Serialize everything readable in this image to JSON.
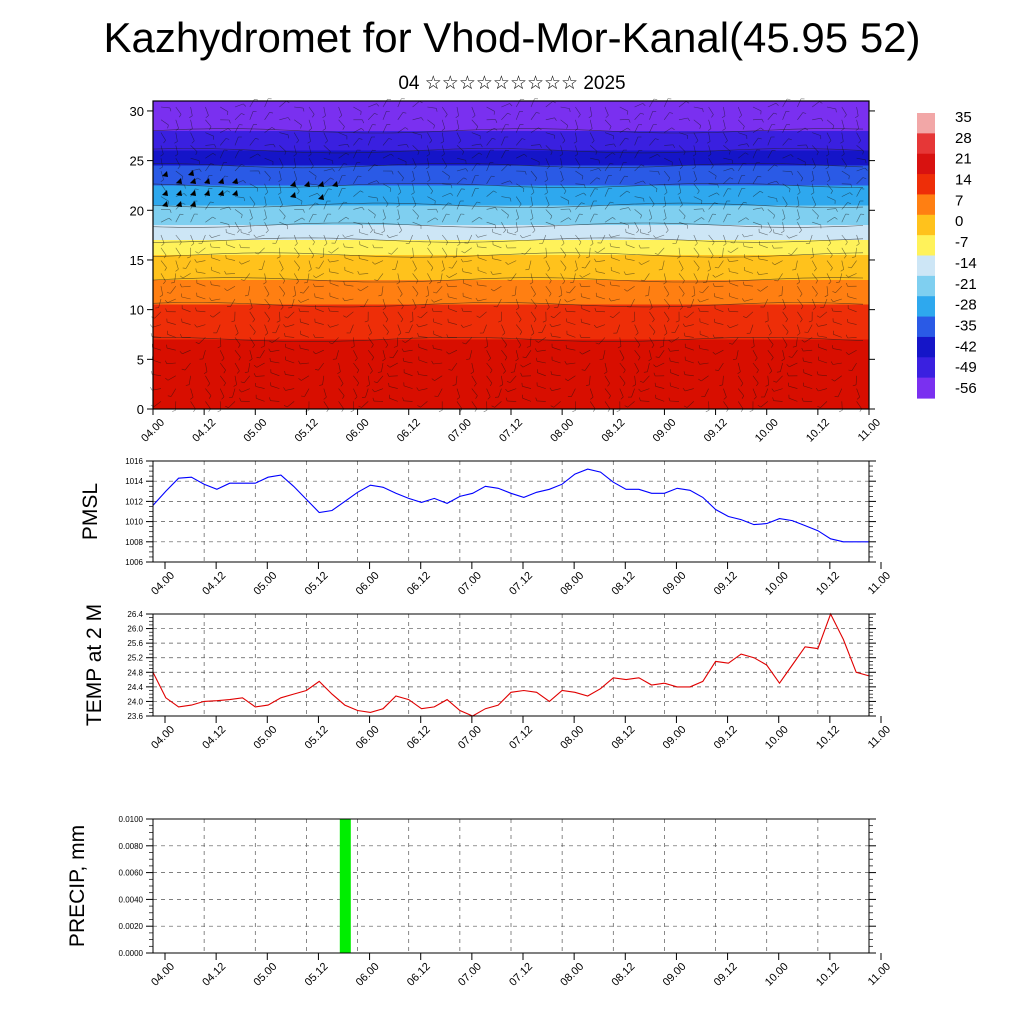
{
  "header": {
    "title": "Kazhydromet for Vhod-Mor-Kanal(45.95 52)",
    "subtitle": "04 ☆☆☆☆☆☆☆☆☆ 2025"
  },
  "colors": {
    "pmsl_line": "#0000ff",
    "temp_line": "#e00000",
    "precip_bar": "#00ee00",
    "grid": "#555555"
  },
  "chart_data": [
    {
      "id": "cross-section",
      "type": "heatmap",
      "title": "",
      "xlabel": "",
      "ylabel": "",
      "x_ticks": [
        "04.00",
        "04.12",
        "05.00",
        "05.12",
        "06.00",
        "06.12",
        "07.00",
        "07.12",
        "08.00",
        "08.12",
        "09.00",
        "09.12",
        "10.00",
        "10.12",
        "11.00"
      ],
      "y_ticks": [
        0,
        5,
        10,
        15,
        20,
        25,
        30
      ],
      "ylim": [
        0,
        31
      ],
      "bands": [
        {
          "top": 31,
          "bottom": 28,
          "color": "#7a30f0"
        },
        {
          "top": 28,
          "bottom": 26,
          "color": "#3a20e0"
        },
        {
          "top": 26,
          "bottom": 24.5,
          "color": "#1515c8"
        },
        {
          "top": 24.5,
          "bottom": 22.5,
          "color": "#2a5ae6"
        },
        {
          "top": 22.5,
          "bottom": 20.5,
          "color": "#2ea8ee"
        },
        {
          "top": 20.5,
          "bottom": 18.5,
          "color": "#7fcff0"
        },
        {
          "top": 18.5,
          "bottom": 17,
          "color": "#cde6f6"
        },
        {
          "top": 17,
          "bottom": 15.5,
          "color": "#fff25a"
        },
        {
          "top": 15.5,
          "bottom": 13,
          "color": "#ffc21c"
        },
        {
          "top": 13,
          "bottom": 10.5,
          "color": "#ff7f12"
        },
        {
          "top": 10.5,
          "bottom": 7,
          "color": "#ee2e08"
        },
        {
          "top": 7,
          "bottom": 0,
          "color": "#d80e00"
        }
      ],
      "colorbar": {
        "labels": [
          "35",
          "28",
          "21",
          "14",
          "7",
          "0",
          "-7",
          "-14",
          "-21",
          "-28",
          "-35",
          "-42",
          "-49",
          "-56"
        ],
        "colors": [
          "#f2a7a7",
          "#e63737",
          "#d81210",
          "#ee2e08",
          "#ff7f12",
          "#ffc21c",
          "#fff25a",
          "#cde6f6",
          "#7fcff0",
          "#2ea8ee",
          "#2a5ae6",
          "#1515c8",
          "#3a20e0",
          "#7a30f0"
        ]
      }
    },
    {
      "id": "pmsl",
      "type": "line",
      "ylabel": "PMSL",
      "ylim": [
        1006,
        1016
      ],
      "y_ticks": [
        1006,
        1008,
        1010,
        1012,
        1014,
        1016
      ],
      "x_ticks": [
        "04.00",
        "04.12",
        "05.00",
        "05.12",
        "06.00",
        "06.12",
        "07.00",
        "07.12",
        "08.00",
        "08.12",
        "09.00",
        "09.12",
        "10.00",
        "10.12",
        "11.00"
      ],
      "x_range": [
        0,
        7
      ],
      "series": [
        {
          "values": [
            [
              0.0,
              1011.6
            ],
            [
              0.125,
              1013.0
            ],
            [
              0.25,
              1014.3
            ],
            [
              0.375,
              1014.4
            ],
            [
              0.5,
              1013.7
            ],
            [
              0.625,
              1013.2
            ],
            [
              0.75,
              1013.8
            ],
            [
              0.875,
              1013.8
            ],
            [
              1.0,
              1013.8
            ],
            [
              1.125,
              1014.4
            ],
            [
              1.25,
              1014.6
            ],
            [
              1.375,
              1013.5
            ],
            [
              1.5,
              1012.2
            ],
            [
              1.625,
              1010.9
            ],
            [
              1.75,
              1011.1
            ],
            [
              1.875,
              1012.0
            ],
            [
              2.0,
              1012.9
            ],
            [
              2.125,
              1013.6
            ],
            [
              2.25,
              1013.4
            ],
            [
              2.375,
              1012.8
            ],
            [
              2.5,
              1012.3
            ],
            [
              2.625,
              1011.9
            ],
            [
              2.75,
              1012.3
            ],
            [
              2.875,
              1011.8
            ],
            [
              3.0,
              1012.5
            ],
            [
              3.125,
              1012.8
            ],
            [
              3.25,
              1013.5
            ],
            [
              3.375,
              1013.3
            ],
            [
              3.5,
              1012.8
            ],
            [
              3.625,
              1012.4
            ],
            [
              3.75,
              1012.9
            ],
            [
              3.875,
              1013.2
            ],
            [
              4.0,
              1013.7
            ],
            [
              4.125,
              1014.7
            ],
            [
              4.25,
              1015.2
            ],
            [
              4.375,
              1014.9
            ],
            [
              4.5,
              1013.9
            ],
            [
              4.625,
              1013.2
            ],
            [
              4.75,
              1013.2
            ],
            [
              4.875,
              1012.8
            ],
            [
              5.0,
              1012.8
            ],
            [
              5.125,
              1013.3
            ],
            [
              5.25,
              1013.1
            ],
            [
              5.375,
              1012.4
            ],
            [
              5.5,
              1011.2
            ],
            [
              5.625,
              1010.5
            ],
            [
              5.75,
              1010.2
            ],
            [
              5.875,
              1009.7
            ],
            [
              6.0,
              1009.8
            ],
            [
              6.125,
              1010.3
            ],
            [
              6.25,
              1010.1
            ],
            [
              6.375,
              1009.6
            ],
            [
              6.5,
              1009.1
            ],
            [
              6.625,
              1008.3
            ],
            [
              6.75,
              1008.0
            ],
            [
              6.875,
              1008.0
            ],
            [
              7.0,
              1008.0
            ]
          ]
        }
      ]
    },
    {
      "id": "temp2m",
      "type": "line",
      "ylabel": "TEMP at 2 M",
      "ylim": [
        23.6,
        26.4
      ],
      "y_ticks": [
        "23.6",
        "24.0",
        "24.4",
        "24.8",
        "25.2",
        "25.6",
        "26.0",
        "26.4"
      ],
      "x_ticks": [
        "04.00",
        "04.12",
        "05.00",
        "05.12",
        "06.00",
        "06.12",
        "07.00",
        "07.12",
        "08.00",
        "08.12",
        "09.00",
        "09.12",
        "10.00",
        "10.12",
        "11.00"
      ],
      "x_range": [
        0,
        7
      ],
      "series": [
        {
          "values": [
            [
              0.0,
              24.8
            ],
            [
              0.125,
              24.1
            ],
            [
              0.25,
              23.85
            ],
            [
              0.375,
              23.9
            ],
            [
              0.5,
              24.0
            ],
            [
              0.625,
              24.02
            ],
            [
              0.75,
              24.05
            ],
            [
              0.875,
              24.1
            ],
            [
              1.0,
              23.85
            ],
            [
              1.125,
              23.9
            ],
            [
              1.25,
              24.1
            ],
            [
              1.375,
              24.2
            ],
            [
              1.5,
              24.3
            ],
            [
              1.625,
              24.55
            ],
            [
              1.75,
              24.2
            ],
            [
              1.875,
              23.9
            ],
            [
              2.0,
              23.75
            ],
            [
              2.125,
              23.7
            ],
            [
              2.25,
              23.8
            ],
            [
              2.375,
              24.15
            ],
            [
              2.5,
              24.05
            ],
            [
              2.625,
              23.8
            ],
            [
              2.75,
              23.85
            ],
            [
              2.875,
              24.05
            ],
            [
              3.0,
              23.75
            ],
            [
              3.125,
              23.6
            ],
            [
              3.25,
              23.8
            ],
            [
              3.375,
              23.9
            ],
            [
              3.5,
              24.25
            ],
            [
              3.625,
              24.3
            ],
            [
              3.75,
              24.25
            ],
            [
              3.875,
              24.0
            ],
            [
              4.0,
              24.3
            ],
            [
              4.125,
              24.25
            ],
            [
              4.25,
              24.15
            ],
            [
              4.375,
              24.35
            ],
            [
              4.5,
              24.65
            ],
            [
              4.625,
              24.6
            ],
            [
              4.75,
              24.65
            ],
            [
              4.875,
              24.45
            ],
            [
              5.0,
              24.5
            ],
            [
              5.125,
              24.4
            ],
            [
              5.25,
              24.4
            ],
            [
              5.375,
              24.55
            ],
            [
              5.5,
              25.1
            ],
            [
              5.625,
              25.05
            ],
            [
              5.75,
              25.3
            ],
            [
              5.875,
              25.2
            ],
            [
              6.0,
              25.0
            ],
            [
              6.125,
              24.5
            ],
            [
              6.25,
              25.0
            ],
            [
              6.375,
              25.5
            ],
            [
              6.5,
              25.45
            ],
            [
              6.625,
              26.4
            ],
            [
              6.75,
              25.7
            ],
            [
              6.875,
              24.8
            ],
            [
              7.0,
              24.7
            ]
          ]
        }
      ]
    },
    {
      "id": "precip",
      "type": "bar",
      "ylabel": "PRECIP, mm",
      "ylim": [
        0,
        0.01
      ],
      "y_ticks": [
        "0.0000",
        "0.0020",
        "0.0040",
        "0.0060",
        "0.0080",
        "0.0100"
      ],
      "x_ticks": [
        "04.00",
        "04.12",
        "05.00",
        "05.12",
        "06.00",
        "06.12",
        "07.00",
        "07.12",
        "08.00",
        "08.12",
        "09.00",
        "09.12",
        "10.00",
        "10.12",
        "11.00"
      ],
      "x_range": [
        0,
        7
      ],
      "bars": [
        {
          "x": 1.875,
          "value": 0.01
        }
      ]
    }
  ]
}
